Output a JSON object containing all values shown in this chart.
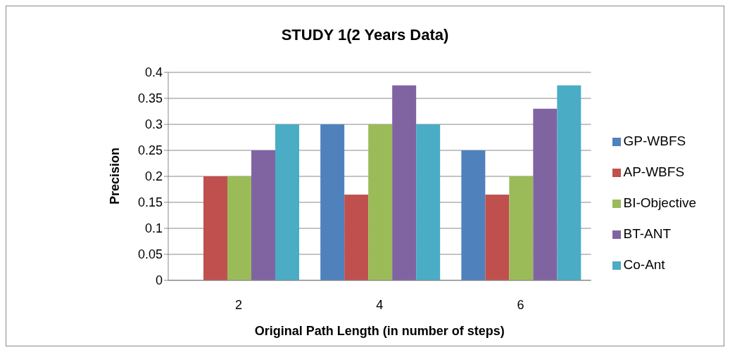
{
  "chart_data": {
    "type": "bar",
    "title": "STUDY 1(2 Years Data)",
    "xlabel": "Original Path Length (in number of steps)",
    "ylabel": "Precision",
    "categories": [
      "2",
      "4",
      "6"
    ],
    "series": [
      {
        "name": "GP-WBFS",
        "color": "#4f81bd",
        "values": [
          0,
          0.3,
          0.25
        ]
      },
      {
        "name": "AP-WBFS",
        "color": "#c0504d",
        "values": [
          0.2,
          0.165,
          0.165
        ]
      },
      {
        "name": "BI-Objective",
        "color": "#9bbb59",
        "values": [
          0.2,
          0.3,
          0.2
        ]
      },
      {
        "name": "BT-ANT",
        "color": "#8064a2",
        "values": [
          0.25,
          0.375,
          0.33
        ]
      },
      {
        "name": "Co-Ant",
        "color": "#4bacc6",
        "values": [
          0.3,
          0.3,
          0.375
        ]
      }
    ],
    "ylim": [
      0,
      0.4
    ],
    "yticks": [
      0,
      0.05,
      0.1,
      0.15,
      0.2,
      0.25,
      0.3,
      0.35,
      0.4
    ],
    "grid": "y",
    "legend": "right"
  }
}
